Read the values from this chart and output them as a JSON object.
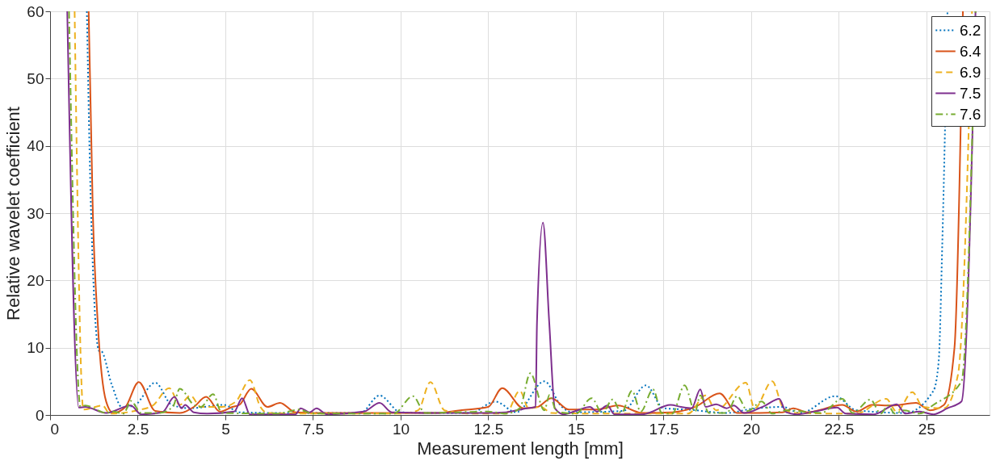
{
  "chart_data": {
    "type": "line",
    "xlabel": "Measurement length [mm]",
    "ylabel": "Relative wavelet coefficient",
    "xlim": [
      0,
      26.8
    ],
    "ylim": [
      0,
      60
    ],
    "xticks": [
      0,
      2.5,
      5,
      7.5,
      10,
      12.5,
      15,
      17.5,
      20,
      22.5,
      25
    ],
    "yticks": [
      0,
      10,
      20,
      30,
      40,
      50,
      60
    ],
    "grid": true,
    "legend": "top right",
    "marker": "none",
    "series": [
      {
        "name": "6.2",
        "color": "#0072bd",
        "line_style": "dotted",
        "x": [
          1.05,
          1.17,
          1.4,
          1.45,
          1.76,
          2.06,
          2.4,
          3.0,
          3.47,
          4.0,
          4.96,
          5.4,
          6.5,
          7.5,
          8.85,
          9.4,
          10.0,
          11.0,
          12.0,
          12.7,
          13.3,
          14.1,
          14.6,
          14.9,
          16.35,
          17.0,
          17.5,
          18.2,
          19.3,
          20.0,
          20.9,
          21.4,
          22.4,
          23.0,
          24.4,
          25.2,
          25.35,
          25.45,
          25.6
        ],
        "values": [
          60,
          30,
          9.5,
          9.5,
          4.5,
          1.1,
          1.4,
          4.8,
          1.5,
          1.0,
          1.5,
          0.4,
          0.3,
          0.3,
          0.3,
          2.9,
          0.4,
          0.3,
          0.3,
          2.0,
          0.4,
          5.0,
          1.2,
          0.4,
          0.6,
          4.4,
          1.0,
          0.8,
          0.3,
          0.9,
          1.2,
          0.3,
          2.8,
          0.7,
          0.3,
          3.6,
          8,
          25,
          60
        ]
      },
      {
        "name": "6.4",
        "color": "#d95319",
        "line_style": "solid",
        "x": [
          1.1,
          1.22,
          1.36,
          1.6,
          1.8,
          2.15,
          2.53,
          3.0,
          3.7,
          4.1,
          4.45,
          4.85,
          5.2,
          5.4,
          5.74,
          6.2,
          6.56,
          7.0,
          8.0,
          9.8,
          11.0,
          11.7,
          12.5,
          12.9,
          13.5,
          13.9,
          14.3,
          14.8,
          15.6,
          16.2,
          16.9,
          17.75,
          18.4,
          19.1,
          19.6,
          20.9,
          21.2,
          21.6,
          22.6,
          23.0,
          23.45,
          24.0,
          24.7,
          25.1,
          25.5,
          25.8,
          26.04
        ],
        "values": [
          60,
          30,
          13.7,
          2.0,
          0.3,
          1.2,
          4.9,
          0.6,
          0.3,
          1.2,
          2.7,
          0.5,
          1.2,
          1.5,
          3.9,
          1.2,
          1.8,
          0.4,
          0.3,
          0.3,
          0.3,
          0.7,
          1.2,
          4.0,
          1.0,
          1.2,
          2.5,
          0.8,
          0.8,
          1.4,
          0.3,
          0.4,
          1.2,
          3.2,
          0.3,
          0.4,
          1.0,
          0.4,
          1.5,
          0.5,
          1.5,
          1.4,
          1.8,
          0.7,
          1.5,
          10,
          60
        ]
      },
      {
        "name": "6.9",
        "color": "#edb120",
        "line_style": "dashed",
        "x": [
          0.7,
          0.95,
          1.5,
          1.7,
          2.5,
          2.93,
          3.4,
          3.7,
          4.0,
          4.3,
          4.9,
          5.3,
          5.7,
          6.0,
          6.2,
          8.0,
          10.0,
          10.5,
          10.85,
          11.25,
          12.0,
          13.0,
          13.4,
          13.65,
          14.0,
          14.3,
          16.0,
          18.2,
          18.7,
          19.0,
          19.85,
          20.1,
          20.6,
          20.9,
          21.2,
          23.0,
          23.85,
          24.15,
          24.6,
          24.9,
          25.5,
          25.9,
          26.3
        ],
        "values": [
          60,
          0.8,
          1.4,
          0.2,
          0.7,
          1.4,
          4.0,
          1.5,
          2.9,
          1.2,
          1.2,
          2.0,
          5.2,
          1.2,
          0.3,
          0.2,
          0.2,
          0.7,
          4.9,
          0.7,
          0.2,
          0.2,
          3.6,
          1.0,
          1.2,
          0.3,
          0.2,
          0.2,
          2.9,
          0.7,
          4.8,
          1.0,
          5.0,
          1.2,
          0.3,
          0.2,
          2.4,
          0.5,
          3.4,
          1.2,
          1.0,
          6,
          60
        ]
      },
      {
        "name": "7.5",
        "color": "#7e2f8e",
        "line_style": "solid",
        "x": [
          0.49,
          0.82,
          1.0,
          1.6,
          2.3,
          2.6,
          3.2,
          3.55,
          3.75,
          3.85,
          4.1,
          4.5,
          5.25,
          5.48,
          5.7,
          7.0,
          7.15,
          7.4,
          7.6,
          7.9,
          8.95,
          9.4,
          9.75,
          11.0,
          12.5,
          13.0,
          13.6,
          13.85,
          13.89,
          14.06,
          14.24,
          14.4,
          14.65,
          15.05,
          15.4,
          15.6,
          15.9,
          16.1,
          16.9,
          17.7,
          18.0,
          18.3,
          18.55,
          18.7,
          19.0,
          19.3,
          19.5,
          19.8,
          20.4,
          20.8,
          21.0,
          21.3,
          21.8,
          22.45,
          22.7,
          23.5,
          24.15,
          24.4,
          24.8,
          25.2,
          25.6,
          26.0,
          26.4
        ],
        "values": [
          60,
          1.1,
          1.2,
          0.3,
          1.4,
          0.1,
          0.4,
          2.7,
          1.0,
          1.5,
          0.4,
          0.2,
          0.5,
          2.5,
          0.1,
          0.1,
          1.0,
          0.4,
          1.0,
          0.1,
          0.5,
          1.8,
          0.4,
          0.3,
          0.3,
          0.4,
          1.0,
          1.2,
          13.7,
          28.6,
          13.7,
          1.0,
          0.1,
          0.7,
          1.2,
          0.5,
          1.4,
          0.1,
          0.1,
          1.5,
          1.2,
          1.0,
          3.8,
          1.2,
          1.6,
          1.0,
          1.4,
          0.3,
          1.4,
          2.4,
          0.4,
          0.1,
          0.5,
          1.1,
          0.2,
          0.1,
          1.6,
          0.2,
          0.5,
          0.1,
          1.0,
          2,
          60
        ]
      },
      {
        "name": "7.6",
        "color": "#77ac30",
        "line_style": "dashdot",
        "x": [
          0.54,
          0.87,
          1.0,
          1.6,
          1.8,
          2.1,
          2.3,
          2.6,
          3.1,
          3.5,
          3.7,
          4.1,
          4.3,
          4.65,
          4.9,
          6.5,
          7.1,
          7.5,
          9.8,
          10.35,
          10.7,
          12.5,
          13.0,
          13.4,
          13.7,
          14.1,
          14.25,
          14.45,
          15.0,
          15.45,
          15.75,
          16.05,
          16.3,
          16.6,
          16.85,
          17.2,
          17.45,
          17.75,
          18.1,
          18.4,
          18.55,
          18.8,
          19.3,
          19.6,
          19.9,
          20.3,
          20.6,
          21.0,
          22.0,
          22.6,
          22.9,
          23.4,
          23.7,
          23.9,
          24.1,
          24.35,
          24.8,
          25.2,
          26.0,
          26.4
        ],
        "values": [
          60,
          1.2,
          1.4,
          0.3,
          0.5,
          0.2,
          2.1,
          0.3,
          0.3,
          1.2,
          3.9,
          1.5,
          1.2,
          3.1,
          0.3,
          0.2,
          0.8,
          0.2,
          0.2,
          2.8,
          0.3,
          0.5,
          0.2,
          1.0,
          6.2,
          0.7,
          3.0,
          0.5,
          0.2,
          2.5,
          0.3,
          2.3,
          0.3,
          3.6,
          0.5,
          3.8,
          0.3,
          0.2,
          4.4,
          0.5,
          2.9,
          0.3,
          0.3,
          2.8,
          0.6,
          2.0,
          0.2,
          0.7,
          0.3,
          2.4,
          0.3,
          2.3,
          0.2,
          1.4,
          0.2,
          0.7,
          0.2,
          1.5,
          5,
          60
        ]
      }
    ]
  }
}
